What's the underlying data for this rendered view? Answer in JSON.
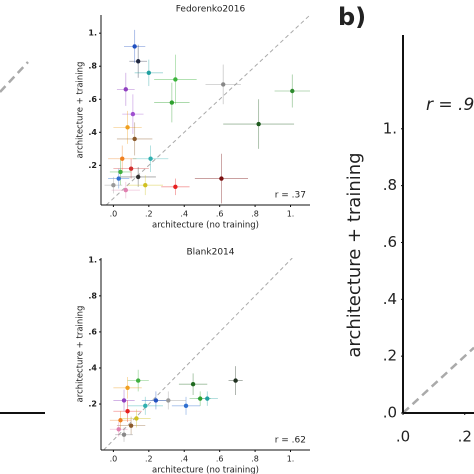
{
  "chart_data": [
    {
      "type": "scatter",
      "title": "Fedorenko2016",
      "xlabel": "architecture (no training)",
      "ylabel": "architecture + training",
      "annotation": "r = .37",
      "xlim": [
        -0.07,
        1.11
      ],
      "ylim": [
        -0.04,
        1.11
      ],
      "xticks": [
        {
          "value": 0,
          "label": ".0"
        },
        {
          "value": 0.2,
          "label": ".2"
        },
        {
          "value": 0.4,
          "label": ".4"
        },
        {
          "value": 0.6,
          "label": ".6"
        },
        {
          "value": 0.8,
          "label": ".8"
        },
        {
          "value": 1,
          "label": "1."
        }
      ],
      "yticks": [
        {
          "value": 0.2,
          "label": ".2"
        },
        {
          "value": 0.4,
          "label": ".4"
        },
        {
          "value": 0.6,
          "label": ".6"
        },
        {
          "value": 0.8,
          "label": ".8"
        },
        {
          "value": 1,
          "label": "1."
        }
      ],
      "x": [
        1.01,
        0.82,
        0.61,
        0.62,
        0.35,
        0.33,
        0.35,
        0.12,
        0.14,
        0.2,
        0.07,
        0.11,
        0.08,
        0.12,
        0.05,
        0.1,
        0.03,
        0.14,
        0.07,
        0.18,
        0.04,
        0,
        0.21
      ],
      "y": [
        0.65,
        0.45,
        0.12,
        0.69,
        0.72,
        0.58,
        0.07,
        0.92,
        0.83,
        0.76,
        0.66,
        0.51,
        0.43,
        0.36,
        0.24,
        0.18,
        0.12,
        0.13,
        0.05,
        0.08,
        0.16,
        0.08,
        0.24
      ],
      "xerr": [
        0.1,
        0.2,
        0.15,
        0.1,
        0.12,
        0.1,
        0.08,
        0.06,
        0.05,
        0.08,
        0.05,
        0.06,
        0.08,
        0.1,
        0.08,
        0.1,
        0.06,
        0.1,
        0.08,
        0.1,
        0.06,
        0.05,
        0.1
      ],
      "yerr": [
        0.1,
        0.15,
        0.15,
        0.12,
        0.15,
        0.12,
        0.05,
        0.1,
        0.1,
        0.08,
        0.1,
        0.12,
        0.1,
        0.1,
        0.08,
        0.06,
        0.06,
        0.06,
        0.05,
        0.06,
        0.08,
        0.05,
        0.08
      ],
      "colors": [
        "#2e8b2e",
        "#1f5a1f",
        "#7a1010",
        "#888888",
        "#3cb43c",
        "#2ea02e",
        "#e62020",
        "#2050c0",
        "#202840",
        "#20a0a0",
        "#9040c0",
        "#a050d0",
        "#f0a020",
        "#8b5a2b",
        "#f08020",
        "#d03030",
        "#3070d0",
        "#303030",
        "#e080b0",
        "#d0c020",
        "#40b040",
        "#999999",
        "#30b0b0"
      ]
    },
    {
      "type": "scatter",
      "title": "Blank2014",
      "xlabel": "architecture (no training)",
      "ylabel": "architecture + training",
      "annotation": "r = .62",
      "xlim": [
        -0.07,
        1.11
      ],
      "ylim": [
        -0.055,
        1.01
      ],
      "xticks": [
        {
          "value": 0,
          "label": ".0"
        },
        {
          "value": 0.2,
          "label": ".2"
        },
        {
          "value": 0.4,
          "label": ".4"
        },
        {
          "value": 0.6,
          "label": ".6"
        },
        {
          "value": 0.8,
          "label": ".8"
        },
        {
          "value": 1,
          "label": "1."
        }
      ],
      "yticks": [
        {
          "value": 0.2,
          "label": ".2"
        },
        {
          "value": 0.4,
          "label": ".4"
        },
        {
          "value": 0.6,
          "label": ".6"
        },
        {
          "value": 0.8,
          "label": ".8"
        },
        {
          "value": 1,
          "label": "1."
        }
      ],
      "x": [
        0.69,
        0.45,
        0.49,
        0.53,
        0.41,
        0.31,
        0.24,
        0.14,
        0.08,
        0.06,
        0.08,
        0.04,
        0.1,
        0.03,
        0.13,
        0.18,
        0.06
      ],
      "y": [
        0.33,
        0.31,
        0.23,
        0.23,
        0.19,
        0.22,
        0.22,
        0.33,
        0.29,
        0.22,
        0.16,
        0.11,
        0.08,
        0.06,
        0.12,
        0.19,
        0.03
      ],
      "xerr": [
        0.04,
        0.08,
        0.06,
        0.06,
        0.08,
        0.1,
        0.08,
        0.06,
        0.08,
        0.06,
        0.08,
        0.06,
        0.08,
        0.05,
        0.08,
        0.1,
        0.05
      ],
      "yerr": [
        0.08,
        0.06,
        0.04,
        0.04,
        0.05,
        0.05,
        0.05,
        0.06,
        0.06,
        0.06,
        0.06,
        0.05,
        0.05,
        0.04,
        0.05,
        0.05,
        0.04
      ],
      "colors": [
        "#203020",
        "#1f6a1f",
        "#2ea02e",
        "#20a0a0",
        "#3070d0",
        "#999999",
        "#2050c0",
        "#40b040",
        "#f0a020",
        "#9040c0",
        "#e62020",
        "#f08020",
        "#8b5a2b",
        "#e080b0",
        "#d0c020",
        "#30b0b0",
        "#888888"
      ]
    },
    {
      "type": "scatter",
      "panel": "b)",
      "ylabel": "architecture + training",
      "annotation": "r = .9",
      "xlim": [
        0,
        0.23
      ],
      "ylim": [
        0,
        1.33
      ],
      "xticks": [
        {
          "value": 0,
          "label": ".0"
        },
        {
          "value": 0.2,
          "label": ".2"
        }
      ],
      "yticks": [
        {
          "value": 0,
          "label": ".0"
        },
        {
          "value": 0.2,
          "label": ".2"
        },
        {
          "value": 0.4,
          "label": ".4"
        },
        {
          "value": 0.6,
          "label": ".6"
        },
        {
          "value": 0.8,
          "label": ".8"
        },
        {
          "value": 1,
          "label": "1."
        }
      ]
    }
  ]
}
